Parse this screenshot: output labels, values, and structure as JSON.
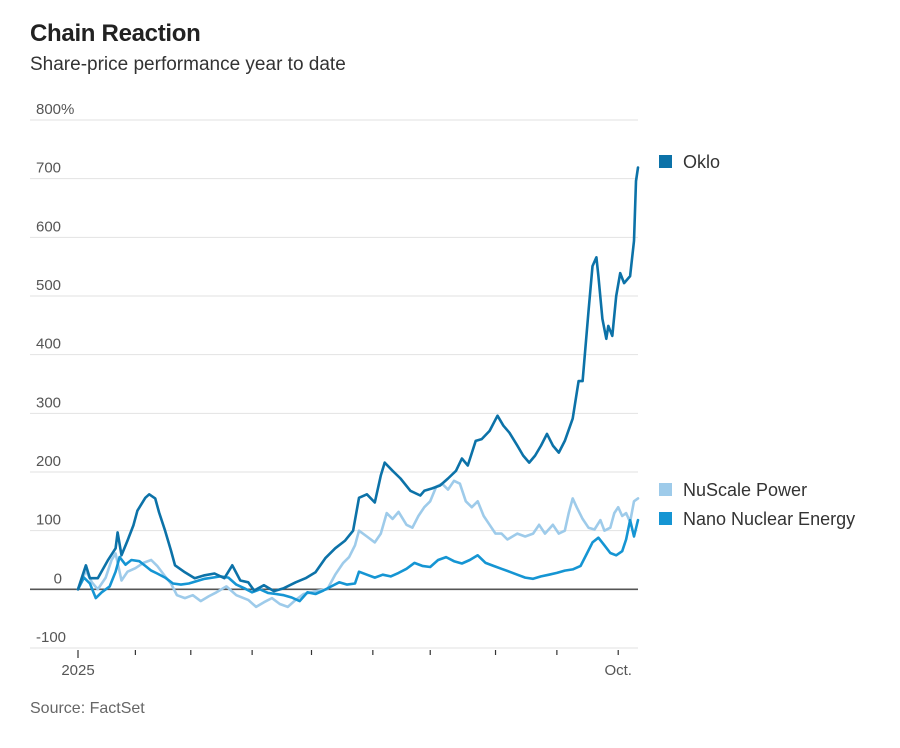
{
  "header": {
    "title": "Chain Reaction",
    "subtitle": "Share-price performance year to date"
  },
  "footer": {
    "source": "Source: FactSet"
  },
  "chart_data": {
    "type": "line",
    "title": "Chain Reaction",
    "subtitle": "Share-price performance year to date",
    "xlabel": "",
    "ylabel": "",
    "x_unit": "days since Jan 1, 2025",
    "xlim": [
      0,
      283
    ],
    "ylim": [
      -100,
      800
    ],
    "y_ticks": [
      800,
      700,
      600,
      500,
      400,
      300,
      200,
      100,
      0,
      -100
    ],
    "y_tick_labels": [
      "800%",
      "700",
      "600",
      "500",
      "400",
      "300",
      "200",
      "100",
      "0",
      "-100"
    ],
    "x_ticks": [
      0,
      29,
      57,
      88,
      118,
      149,
      178,
      211,
      242,
      273
    ],
    "x_tick_labels": [
      "2025",
      "",
      "",
      "",
      "",
      "",
      "",
      "",
      "",
      "Oct."
    ],
    "grid": true,
    "legend": "right",
    "series": [
      {
        "name": "Oklo",
        "color": "#0c72a8",
        "legend_value_anchor": 718,
        "points": [
          [
            0,
            0
          ],
          [
            4,
            41
          ],
          [
            6,
            19
          ],
          [
            10,
            19
          ],
          [
            15,
            49
          ],
          [
            19,
            70
          ],
          [
            20,
            97
          ],
          [
            22,
            58
          ],
          [
            25,
            83
          ],
          [
            28,
            109
          ],
          [
            30,
            134
          ],
          [
            34,
            156
          ],
          [
            36,
            162
          ],
          [
            39,
            155
          ],
          [
            41,
            131
          ],
          [
            44,
            100
          ],
          [
            47,
            66
          ],
          [
            49,
            41
          ],
          [
            54,
            29
          ],
          [
            59,
            19
          ],
          [
            64,
            24
          ],
          [
            69,
            27
          ],
          [
            74,
            19
          ],
          [
            78,
            41
          ],
          [
            82,
            15
          ],
          [
            86,
            12
          ],
          [
            89,
            -2
          ],
          [
            94,
            7
          ],
          [
            99,
            -3
          ],
          [
            104,
            2
          ],
          [
            110,
            12
          ],
          [
            115,
            19
          ],
          [
            120,
            29
          ],
          [
            125,
            53
          ],
          [
            130,
            70
          ],
          [
            135,
            83
          ],
          [
            139,
            100
          ],
          [
            142,
            156
          ],
          [
            146,
            162
          ],
          [
            150,
            148
          ],
          [
            153,
            194
          ],
          [
            155,
            216
          ],
          [
            159,
            202
          ],
          [
            163,
            189
          ],
          [
            168,
            168
          ],
          [
            173,
            160
          ],
          [
            175,
            168
          ],
          [
            179,
            172
          ],
          [
            183,
            177
          ],
          [
            187,
            189
          ],
          [
            191,
            202
          ],
          [
            194,
            223
          ],
          [
            197,
            211
          ],
          [
            201,
            253
          ],
          [
            204,
            256
          ],
          [
            208,
            270
          ],
          [
            212,
            296
          ],
          [
            215,
            279
          ],
          [
            218,
            267
          ],
          [
            222,
            245
          ],
          [
            225,
            228
          ],
          [
            228,
            216
          ],
          [
            231,
            228
          ],
          [
            234,
            245
          ],
          [
            237,
            265
          ],
          [
            240,
            245
          ],
          [
            243,
            233
          ],
          [
            246,
            253
          ],
          [
            250,
            291
          ],
          [
            253,
            355
          ],
          [
            255,
            355
          ],
          [
            258,
            474
          ],
          [
            260,
            551
          ],
          [
            262,
            566
          ],
          [
            263,
            534
          ],
          [
            265,
            461
          ],
          [
            267,
            427
          ],
          [
            268,
            449
          ],
          [
            270,
            432
          ],
          [
            272,
            500
          ],
          [
            274,
            539
          ],
          [
            276,
            522
          ],
          [
            279,
            534
          ],
          [
            281,
            594
          ],
          [
            282,
            696
          ],
          [
            283,
            719
          ]
        ]
      },
      {
        "name": "NuScale Power",
        "color": "#9ecbea",
        "legend_value_anchor": 150,
        "points": [
          [
            0,
            0
          ],
          [
            4,
            32
          ],
          [
            7,
            12
          ],
          [
            10,
            0
          ],
          [
            14,
            20
          ],
          [
            17,
            50
          ],
          [
            19,
            61
          ],
          [
            22,
            15
          ],
          [
            25,
            30
          ],
          [
            29,
            36
          ],
          [
            33,
            45
          ],
          [
            37,
            50
          ],
          [
            40,
            40
          ],
          [
            44,
            22
          ],
          [
            47,
            10
          ],
          [
            50,
            -10
          ],
          [
            54,
            -15
          ],
          [
            58,
            -10
          ],
          [
            62,
            -20
          ],
          [
            66,
            -12
          ],
          [
            70,
            -5
          ],
          [
            75,
            5
          ],
          [
            80,
            -10
          ],
          [
            86,
            -18
          ],
          [
            90,
            -30
          ],
          [
            94,
            -22
          ],
          [
            98,
            -15
          ],
          [
            102,
            -25
          ],
          [
            106,
            -30
          ],
          [
            110,
            -18
          ],
          [
            114,
            -8
          ],
          [
            118,
            -5
          ],
          [
            122,
            -2
          ],
          [
            126,
            0
          ],
          [
            130,
            25
          ],
          [
            134,
            45
          ],
          [
            137,
            55
          ],
          [
            140,
            75
          ],
          [
            142,
            100
          ],
          [
            146,
            90
          ],
          [
            150,
            80
          ],
          [
            153,
            95
          ],
          [
            156,
            130
          ],
          [
            159,
            120
          ],
          [
            162,
            132
          ],
          [
            166,
            110
          ],
          [
            169,
            105
          ],
          [
            172,
            125
          ],
          [
            175,
            140
          ],
          [
            178,
            150
          ],
          [
            181,
            175
          ],
          [
            184,
            180
          ],
          [
            187,
            170
          ],
          [
            190,
            185
          ],
          [
            193,
            180
          ],
          [
            196,
            150
          ],
          [
            199,
            140
          ],
          [
            202,
            150
          ],
          [
            205,
            125
          ],
          [
            208,
            110
          ],
          [
            211,
            95
          ],
          [
            214,
            95
          ],
          [
            217,
            85
          ],
          [
            222,
            95
          ],
          [
            226,
            90
          ],
          [
            230,
            95
          ],
          [
            233,
            110
          ],
          [
            236,
            95
          ],
          [
            240,
            110
          ],
          [
            243,
            95
          ],
          [
            246,
            100
          ],
          [
            248,
            130
          ],
          [
            250,
            155
          ],
          [
            252,
            140
          ],
          [
            255,
            120
          ],
          [
            258,
            105
          ],
          [
            261,
            102
          ],
          [
            264,
            118
          ],
          [
            266,
            100
          ],
          [
            269,
            105
          ],
          [
            271,
            130
          ],
          [
            273,
            140
          ],
          [
            275,
            125
          ],
          [
            277,
            130
          ],
          [
            279,
            115
          ],
          [
            281,
            150
          ],
          [
            283,
            155
          ]
        ]
      },
      {
        "name": "Nano Nuclear Energy",
        "color": "#1595d3",
        "legend_value_anchor": 118,
        "points": [
          [
            0,
            0
          ],
          [
            3,
            20
          ],
          [
            6,
            10
          ],
          [
            9,
            -15
          ],
          [
            12,
            -5
          ],
          [
            16,
            5
          ],
          [
            19,
            30
          ],
          [
            21,
            55
          ],
          [
            24,
            42
          ],
          [
            27,
            50
          ],
          [
            31,
            48
          ],
          [
            34,
            40
          ],
          [
            37,
            32
          ],
          [
            40,
            27
          ],
          [
            44,
            20
          ],
          [
            48,
            10
          ],
          [
            52,
            8
          ],
          [
            56,
            10
          ],
          [
            60,
            14
          ],
          [
            64,
            18
          ],
          [
            68,
            20
          ],
          [
            72,
            22
          ],
          [
            76,
            20
          ],
          [
            80,
            8
          ],
          [
            84,
            2
          ],
          [
            88,
            -5
          ],
          [
            92,
            0
          ],
          [
            96,
            -6
          ],
          [
            100,
            -8
          ],
          [
            104,
            -10
          ],
          [
            108,
            -14
          ],
          [
            112,
            -20
          ],
          [
            116,
            -5
          ],
          [
            120,
            -8
          ],
          [
            124,
            -2
          ],
          [
            128,
            5
          ],
          [
            132,
            12
          ],
          [
            136,
            8
          ],
          [
            140,
            10
          ],
          [
            142,
            30
          ],
          [
            146,
            25
          ],
          [
            150,
            20
          ],
          [
            154,
            25
          ],
          [
            158,
            22
          ],
          [
            162,
            28
          ],
          [
            166,
            35
          ],
          [
            170,
            45
          ],
          [
            174,
            40
          ],
          [
            178,
            38
          ],
          [
            182,
            50
          ],
          [
            186,
            55
          ],
          [
            190,
            48
          ],
          [
            194,
            44
          ],
          [
            198,
            50
          ],
          [
            202,
            58
          ],
          [
            206,
            45
          ],
          [
            210,
            40
          ],
          [
            214,
            35
          ],
          [
            218,
            30
          ],
          [
            222,
            25
          ],
          [
            226,
            20
          ],
          [
            230,
            18
          ],
          [
            234,
            22
          ],
          [
            238,
            25
          ],
          [
            242,
            28
          ],
          [
            246,
            32
          ],
          [
            250,
            34
          ],
          [
            254,
            40
          ],
          [
            257,
            60
          ],
          [
            260,
            80
          ],
          [
            263,
            88
          ],
          [
            266,
            75
          ],
          [
            269,
            62
          ],
          [
            272,
            58
          ],
          [
            275,
            65
          ],
          [
            277,
            85
          ],
          [
            279,
            118
          ],
          [
            281,
            90
          ],
          [
            283,
            118
          ]
        ]
      }
    ]
  }
}
